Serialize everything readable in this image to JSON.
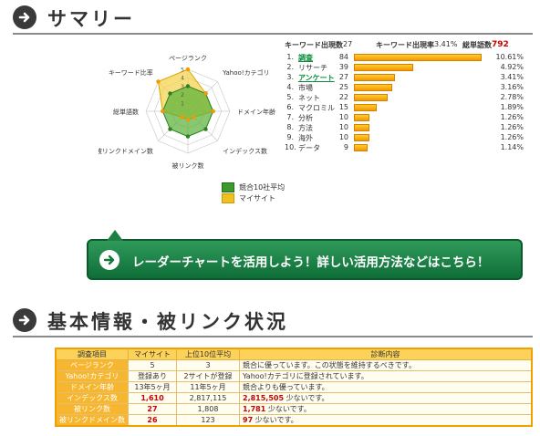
{
  "summary": {
    "title": "サマリー"
  },
  "radar": {
    "scale_ticks": [
      "1",
      "2",
      "3",
      "4",
      "5"
    ],
    "axes": [
      {
        "label": "ページランク",
        "mysite": 5,
        "avg": 3
      },
      {
        "label": "Yahoo!カテゴリ",
        "mysite": 3,
        "avg": 3
      },
      {
        "label": "ドメイン年齢",
        "mysite": 3,
        "avg": 3
      },
      {
        "label": "インデックス数",
        "mysite": 1,
        "avg": 3
      },
      {
        "label": "被リンク数",
        "mysite": 1,
        "avg": 3
      },
      {
        "label": "被リンクドメイン数",
        "mysite": 1,
        "avg": 3
      },
      {
        "label": "総単語数",
        "mysite": 3,
        "avg": 3
      },
      {
        "label": "キーワード比率",
        "mysite": 5,
        "avg": 3
      }
    ],
    "legend": [
      {
        "label": "競合10社平均",
        "color": "#3a9a2a"
      },
      {
        "label": "マイサイト",
        "color": "#f0c020"
      }
    ]
  },
  "keywords": {
    "count_label": "キーワード出現数",
    "count_value": "27",
    "rate_label": "キーワード出現率",
    "rate_value": "3.41%",
    "total_label": "総単語数",
    "total_value": "792",
    "rows": [
      {
        "rank": "1.",
        "word": "調査",
        "count": "84",
        "pct": "10.61%",
        "ratio": 10.61,
        "link": true
      },
      {
        "rank": "2.",
        "word": "リサーチ",
        "count": "39",
        "pct": "4.92%",
        "ratio": 4.92,
        "link": false
      },
      {
        "rank": "3.",
        "word": "アンケート",
        "count": "27",
        "pct": "3.41%",
        "ratio": 3.41,
        "link": true
      },
      {
        "rank": "4.",
        "word": "市場",
        "count": "25",
        "pct": "3.16%",
        "ratio": 3.16,
        "link": false
      },
      {
        "rank": "5.",
        "word": "ネット",
        "count": "22",
        "pct": "2.78%",
        "ratio": 2.78,
        "link": false
      },
      {
        "rank": "6.",
        "word": "マクロミル",
        "count": "15",
        "pct": "1.89%",
        "ratio": 1.89,
        "link": false
      },
      {
        "rank": "7.",
        "word": "分析",
        "count": "10",
        "pct": "1.26%",
        "ratio": 1.26,
        "link": false
      },
      {
        "rank": "8.",
        "word": "方法",
        "count": "10",
        "pct": "1.26%",
        "ratio": 1.26,
        "link": false
      },
      {
        "rank": "9.",
        "word": "海外",
        "count": "10",
        "pct": "1.26%",
        "ratio": 1.26,
        "link": false
      },
      {
        "rank": "10.",
        "word": "データ",
        "count": "9",
        "pct": "1.14%",
        "ratio": 1.14,
        "link": false
      }
    ]
  },
  "cta": {
    "label": "レーダーチャートを活用しよう！詳しい活用方法などはこちら！"
  },
  "basic": {
    "title": "基本情報・被リンク状況",
    "headers": [
      "調査項目",
      "マイサイト",
      "上位10位平均",
      "診断内容"
    ],
    "rows": [
      {
        "item": "ページランク",
        "mine": "5",
        "mine_red": false,
        "avg": "3",
        "diag_value": "",
        "diag": "競合に優っています。この状態を維持するべきです。"
      },
      {
        "item": "Yahoo!カテゴリ",
        "mine": "登録あり",
        "mine_red": false,
        "avg": "2サイトが登録",
        "diag_value": "",
        "diag": "Yahoo!カテゴリに登録されています。"
      },
      {
        "item": "ドメイン年齢",
        "mine": "13年5ヶ月",
        "mine_red": false,
        "avg": "11年5ヶ月",
        "diag_value": "",
        "diag": "競合よりも優っています。"
      },
      {
        "item": "インデックス数",
        "mine": "1,610",
        "mine_red": true,
        "avg": "2,817,115",
        "diag_value": "2,815,505",
        "diag": "少ないです。"
      },
      {
        "item": "被リンク数",
        "mine": "27",
        "mine_red": true,
        "avg": "1,808",
        "diag_value": "1,781",
        "diag": "少ないです。"
      },
      {
        "item": "被リンクドメイン数",
        "mine": "26",
        "mine_red": true,
        "avg": "123",
        "diag_value": "97",
        "diag": "少ないです。"
      }
    ]
  },
  "colors": {
    "accent_green": "#0f6e38",
    "bar_orange": "#f29a00",
    "header_yellow": "#fcd25a",
    "value_red": "#cc0000"
  },
  "icons": {
    "section": "arrow-right-circle-icon",
    "cta": "arrow-right-circle-icon"
  }
}
